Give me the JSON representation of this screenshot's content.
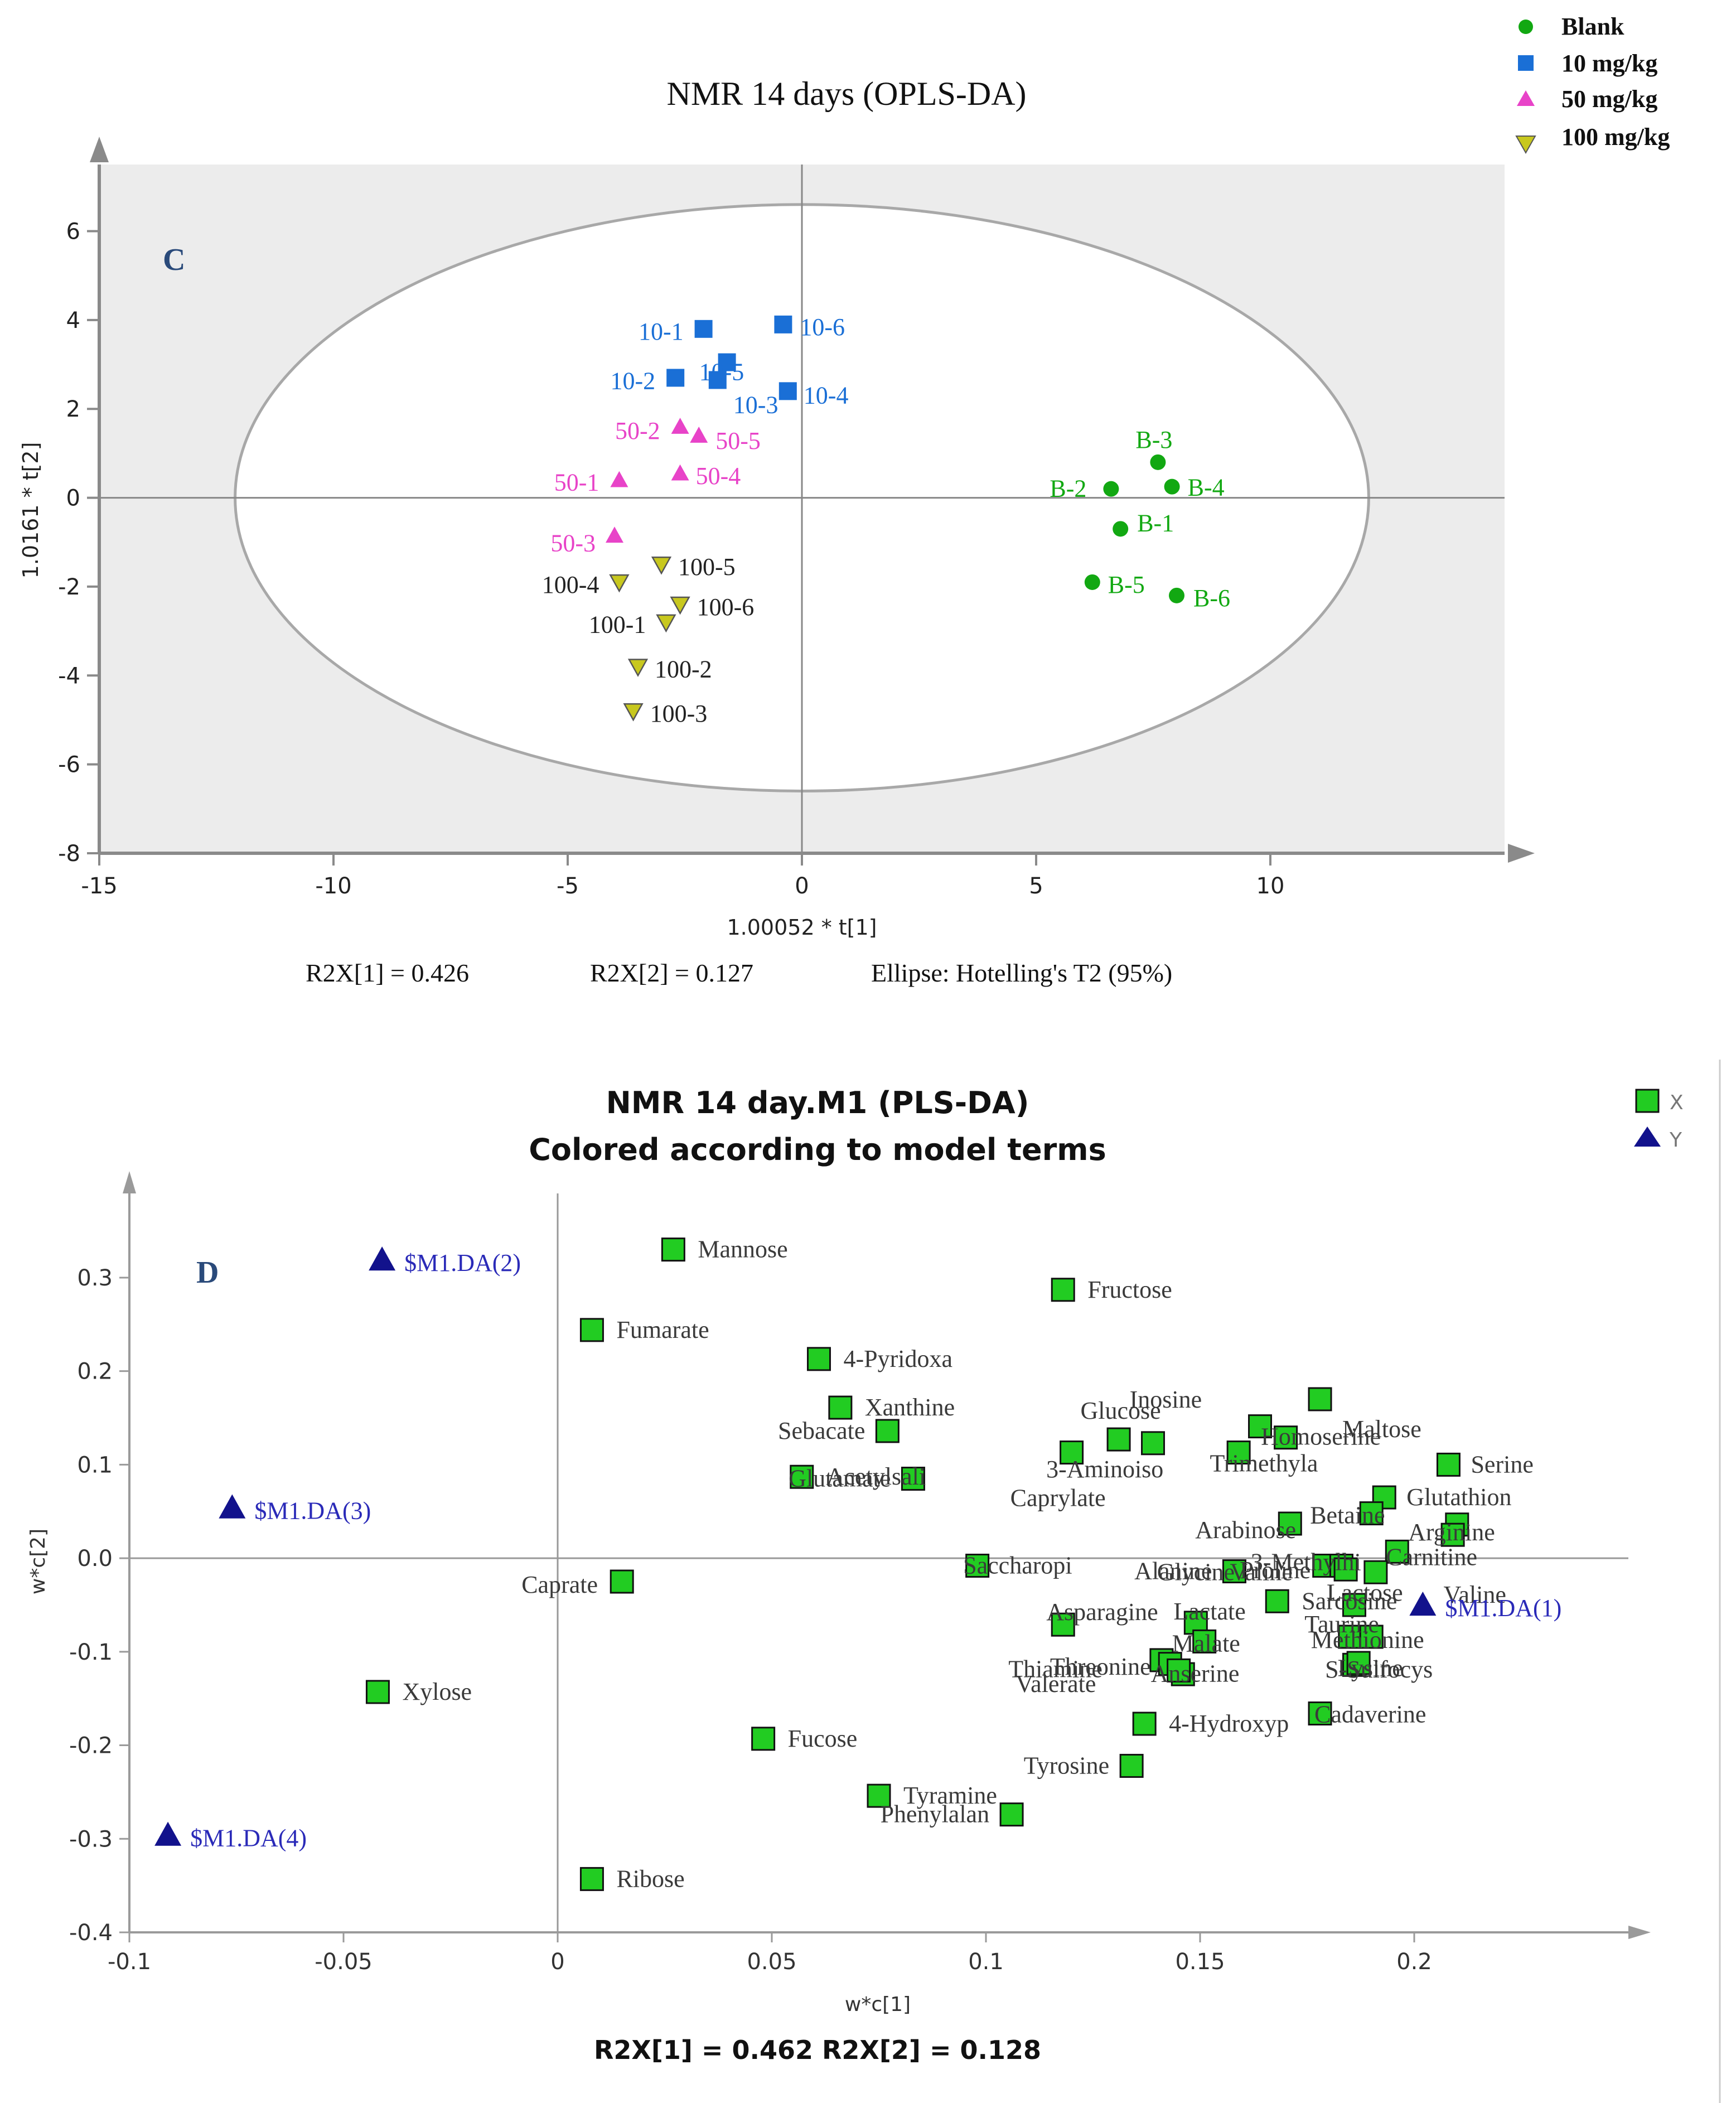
{
  "colors": {
    "blank": "#12a812",
    "mg10": "#1a6fd6",
    "mg50": "#e843c8",
    "mg100": "#c8c81e",
    "plotBg": "#ececec",
    "axis": "#8a8a8a",
    "xGreen": "#22cc22",
    "yBlue": "#12128c",
    "dLabel": "#3a3a3a"
  },
  "legend": {
    "items": [
      {
        "label": "Blank",
        "shape": "circle",
        "color": "#12a812"
      },
      {
        "label": "10 mg/kg",
        "shape": "square",
        "color": "#1a6fd6"
      },
      {
        "label": "50 mg/kg",
        "shape": "triangle-up",
        "color": "#e843c8"
      },
      {
        "label": "100 mg/kg",
        "shape": "triangle-down",
        "color": "#c8c81e"
      }
    ]
  },
  "legend2": {
    "items": [
      {
        "label": "X",
        "shape": "square",
        "color": "#22cc22"
      },
      {
        "label": "Y",
        "shape": "triangle-up",
        "color": "#12128c"
      }
    ]
  },
  "chart_data": [
    {
      "type": "scatter",
      "panel": "C",
      "title": "NMR 14 days (OPLS-DA)",
      "xlabel": "1.00052 * t[1]",
      "ylabel": "1.0161 * t[2]",
      "xlim": [
        -15,
        15
      ],
      "ylim": [
        -8,
        7.5
      ],
      "xticks": [
        -15,
        -10,
        -5,
        0,
        5,
        10
      ],
      "yticks": [
        -8,
        -6,
        -4,
        -2,
        0,
        2,
        4,
        6
      ],
      "ellipse": {
        "cx": 0,
        "cy": 0,
        "rx": 12.1,
        "ry": 6.6,
        "label": "Ellipse: Hotelling's T2 (95%)"
      },
      "footnotes": [
        "R2X[1] = 0.426",
        "R2X[2] = 0.127",
        "Ellipse: Hotelling's T2 (95%)"
      ],
      "series": [
        {
          "name": "Blank",
          "shape": "circle",
          "color": "#12a812",
          "points": [
            {
              "label": "B-1",
              "x": 6.8,
              "y": -0.7
            },
            {
              "label": "B-2",
              "x": 6.6,
              "y": 0.2
            },
            {
              "label": "B-3",
              "x": 7.6,
              "y": 0.8
            },
            {
              "label": "B-4",
              "x": 7.9,
              "y": 0.25
            },
            {
              "label": "B-5",
              "x": 6.2,
              "y": -1.9
            },
            {
              "label": "B-6",
              "x": 8.0,
              "y": -2.2
            }
          ]
        },
        {
          "name": "10 mg/kg",
          "shape": "square",
          "color": "#1a6fd6",
          "points": [
            {
              "label": "10-1",
              "x": -2.1,
              "y": 3.8
            },
            {
              "label": "10-2",
              "x": -2.7,
              "y": 2.7
            },
            {
              "label": "10-3",
              "x": -1.8,
              "y": 2.65
            },
            {
              "label": "10-4",
              "x": -0.3,
              "y": 2.4
            },
            {
              "label": "10-5",
              "x": -1.6,
              "y": 3.05
            },
            {
              "label": "10-6",
              "x": -0.4,
              "y": 3.9
            }
          ]
        },
        {
          "name": "50 mg/kg",
          "shape": "triangle-up",
          "color": "#e843c8",
          "points": [
            {
              "label": "50-1",
              "x": -3.9,
              "y": 0.4
            },
            {
              "label": "50-2",
              "x": -2.6,
              "y": 1.6
            },
            {
              "label": "50-3",
              "x": -4.0,
              "y": -0.85
            },
            {
              "label": "50-4",
              "x": -2.6,
              "y": 0.55
            },
            {
              "label": "50-5",
              "x": -2.2,
              "y": 1.4
            }
          ]
        },
        {
          "name": "100 mg/kg",
          "shape": "triangle-down",
          "color": "#c8c81e",
          "points": [
            {
              "label": "100-1",
              "x": -2.9,
              "y": -2.8
            },
            {
              "label": "100-2",
              "x": -3.5,
              "y": -3.8
            },
            {
              "label": "100-3",
              "x": -3.6,
              "y": -4.8
            },
            {
              "label": "100-4",
              "x": -3.9,
              "y": -1.9
            },
            {
              "label": "100-5",
              "x": -3.0,
              "y": -1.5
            },
            {
              "label": "100-6",
              "x": -2.6,
              "y": -2.4
            }
          ]
        }
      ]
    },
    {
      "type": "scatter",
      "panel": "D",
      "title": "NMR 14 day.M1 (PLS-DA)",
      "subtitle": "Colored according to model terms",
      "xlabel": "w*c[1]",
      "ylabel": "w*c[2]",
      "xlim": [
        -0.1,
        0.25
      ],
      "ylim": [
        -0.4,
        0.39
      ],
      "xticks": [
        -0.1,
        -0.05,
        0,
        0.05,
        0.1,
        0.15,
        0.2
      ],
      "yticks": [
        -0.4,
        -0.3,
        -0.2,
        -0.1,
        0,
        0.1,
        0.2,
        0.3
      ],
      "footnote": "R2X[1] = 0.462 R2X[2] = 0.128",
      "series": [
        {
          "name": "X",
          "shape": "square",
          "color": "#22cc22",
          "points": [
            {
              "label": "Mannose",
              "x": 0.027,
              "y": 0.33
            },
            {
              "label": "Fructose",
              "x": 0.118,
              "y": 0.287
            },
            {
              "label": "Fumarate",
              "x": 0.008,
              "y": 0.244
            },
            {
              "label": "4-Pyridoxa",
              "x": 0.061,
              "y": 0.213
            },
            {
              "label": "Xanthine",
              "x": 0.066,
              "y": 0.161
            },
            {
              "label": "Sebacate",
              "x": 0.077,
              "y": 0.136
            },
            {
              "label": "Acetylsali",
              "x": 0.057,
              "y": 0.087
            },
            {
              "label": "Glutamate",
              "x": 0.083,
              "y": 0.085
            },
            {
              "label": "Caprylate",
              "x": 0.12,
              "y": 0.113
            },
            {
              "label": "3-Aminoiso",
              "x": 0.131,
              "y": 0.127
            },
            {
              "label": "Glucose",
              "x": 0.139,
              "y": 0.123
            },
            {
              "label": "Trimethyla",
              "x": 0.164,
              "y": 0.141
            },
            {
              "label": "Inosine",
              "x": 0.17,
              "y": 0.129
            },
            {
              "label": "Homoserine",
              "x": 0.159,
              "y": 0.113
            },
            {
              "label": "Maltose",
              "x": 0.178,
              "y": 0.17
            },
            {
              "label": "Serine",
              "x": 0.208,
              "y": 0.1
            },
            {
              "label": "Glutathion",
              "x": 0.193,
              "y": 0.065
            },
            {
              "label": "Arabinose",
              "x": 0.171,
              "y": 0.037
            },
            {
              "label": "Betaine",
              "x": 0.19,
              "y": 0.048
            },
            {
              "label": "3-Methylhi",
              "x": 0.21,
              "y": 0.036
            },
            {
              "label": "Arginine",
              "x": 0.209,
              "y": 0.025
            },
            {
              "label": "Carnitine",
              "x": 0.196,
              "y": 0.007
            },
            {
              "label": "Lactose",
              "x": 0.191,
              "y": -0.015
            },
            {
              "label": "Saccharopi",
              "x": 0.098,
              "y": -0.008
            },
            {
              "label": "Alanine",
              "x": 0.158,
              "y": -0.014
            },
            {
              "label": "Glycine",
              "x": 0.179,
              "y": -0.008
            },
            {
              "label": "Valine",
              "x": 0.183,
              "y": -0.008
            },
            {
              "label": "Proline",
              "x": 0.184,
              "y": -0.012
            },
            {
              "label": "Caprate",
              "x": 0.015,
              "y": -0.025
            },
            {
              "label": "Sarcosine",
              "x": 0.168,
              "y": -0.046
            },
            {
              "label": "Valine",
              "x": 0.186,
              "y": -0.05
            },
            {
              "label": "Asparagine",
              "x": 0.118,
              "y": -0.071
            },
            {
              "label": "Lactate",
              "x": 0.149,
              "y": -0.069
            },
            {
              "label": "Malate",
              "x": 0.151,
              "y": -0.089
            },
            {
              "label": "Methionine",
              "x": 0.185,
              "y": -0.084
            },
            {
              "label": "Taurine",
              "x": 0.19,
              "y": -0.084
            },
            {
              "label": "Threonine",
              "x": 0.141,
              "y": -0.109
            },
            {
              "label": "Thiamine",
              "x": 0.143,
              "y": -0.113
            },
            {
              "label": "Valerate",
              "x": 0.146,
              "y": -0.124
            },
            {
              "label": "Anserine",
              "x": 0.145,
              "y": -0.12
            },
            {
              "label": "Lysine",
              "x": 0.186,
              "y": -0.114
            },
            {
              "label": "S-Sulfocys",
              "x": 0.187,
              "y": -0.112
            },
            {
              "label": "Cadaverine",
              "x": 0.178,
              "y": -0.166
            },
            {
              "label": "4-Hydroxyp",
              "x": 0.137,
              "y": -0.177
            },
            {
              "label": "Tyrosine",
              "x": 0.134,
              "y": -0.222
            },
            {
              "label": "Xylose",
              "x": -0.042,
              "y": -0.143
            },
            {
              "label": "Fucose",
              "x": 0.048,
              "y": -0.193
            },
            {
              "label": "Tyramine",
              "x": 0.075,
              "y": -0.254
            },
            {
              "label": "Phenylalan",
              "x": 0.106,
              "y": -0.274
            },
            {
              "label": "Ribose",
              "x": 0.008,
              "y": -0.343
            }
          ]
        },
        {
          "name": "Y",
          "shape": "triangle-up",
          "color": "#12128c",
          "points": [
            {
              "label": "$M1.DA(1)",
              "x": 0.202,
              "y": -0.05
            },
            {
              "label": "$M1.DA(2)",
              "x": -0.041,
              "y": 0.319
            },
            {
              "label": "$M1.DA(3)",
              "x": -0.076,
              "y": 0.054
            },
            {
              "label": "$M1.DA(4)",
              "x": -0.091,
              "y": -0.296
            }
          ]
        }
      ]
    }
  ],
  "panelC": {
    "title": "NMR 14 days (OPLS-DA)",
    "letter": "C",
    "xlabel": "1.00052 * t[1]",
    "ylabel": "1.0161 * t[2]",
    "foot1": "R2X[1] = 0.426",
    "foot2": "R2X[2] = 0.127",
    "foot3": "Ellipse: Hotelling's T2 (95%)"
  },
  "panelD": {
    "title": "NMR 14 day.M1 (PLS-DA)",
    "subtitle": "Colored according to model terms",
    "letter": "D",
    "xlabel": "w*c[1]",
    "ylabel": "w*c[2]",
    "foot": "R2X[1] = 0.462 R2X[2] = 0.128"
  }
}
